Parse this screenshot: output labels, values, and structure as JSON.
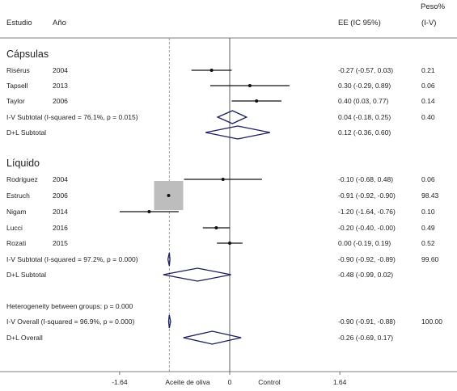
{
  "header": {
    "study": "Estudio",
    "year": "Año",
    "ee": "EE (IC 95%)",
    "weight_top": "Peso%",
    "weight_bottom": "(I-V)"
  },
  "chart_data": {
    "type": "forest",
    "xlim": [
      -3.1,
      3.1
    ],
    "null_value": 0,
    "overall_reference": -0.9,
    "ticks": [
      {
        "value": -1.64,
        "label": "-1.64"
      },
      {
        "value": 0,
        "label": "0"
      },
      {
        "value": 1.64,
        "label": "1.64"
      }
    ],
    "xlabel_left": "Aceite de oliva",
    "xlabel_right": "Control",
    "groups": [
      {
        "name": "Cápsulas",
        "studies": [
          {
            "study": "Risérus",
            "year": "2004",
            "ee": -0.27,
            "lo": -0.57,
            "hi": 0.03,
            "text": "-0.27 (-0.57, 0.03)",
            "weight": "0.21"
          },
          {
            "study": "Tapsell",
            "year": "2013",
            "ee": 0.3,
            "lo": -0.29,
            "hi": 0.89,
            "text": "0.30 (-0.29, 0.89)",
            "weight": "0.06"
          },
          {
            "study": "Taylor",
            "year": "2006",
            "ee": 0.4,
            "lo": 0.03,
            "hi": 0.77,
            "text": "0.40 (0.03, 0.77)",
            "weight": "0.14"
          }
        ],
        "subtotals": [
          {
            "label": "I-V Subtotal  (I-squared = 76.1%, p = 0.015)",
            "ee": 0.04,
            "lo": -0.18,
            "hi": 0.25,
            "text": "0.04 (-0.18, 0.25)",
            "weight": "0.40"
          },
          {
            "label": "D+L Subtotal",
            "ee": 0.12,
            "lo": -0.36,
            "hi": 0.6,
            "text": "0.12 (-0.36, 0.60)",
            "weight": ""
          }
        ]
      },
      {
        "name": "Líquido",
        "studies": [
          {
            "study": "Rodriguez",
            "year": "2004",
            "ee": -0.1,
            "lo": -0.68,
            "hi": 0.48,
            "text": "-0.10 (-0.68, 0.48)",
            "weight": "0.06"
          },
          {
            "study": "Estruch",
            "year": "2006",
            "ee": -0.91,
            "lo": -0.92,
            "hi": -0.9,
            "text": "-0.91 (-0.92, -0.90)",
            "weight": "98.43"
          },
          {
            "study": "Nigam",
            "year": "2014",
            "ee": -1.2,
            "lo": -1.64,
            "hi": -0.76,
            "text": "-1.20 (-1.64, -0.76)",
            "weight": "0.10"
          },
          {
            "study": "Lucci",
            "year": "2016",
            "ee": -0.2,
            "lo": -0.4,
            "hi": -0.0,
            "text": "-0.20 (-0.40, -0.00)",
            "weight": "0.49"
          },
          {
            "study": "Rozati",
            "year": "2015",
            "ee": 0.0,
            "lo": -0.19,
            "hi": 0.19,
            "text": "0.00 (-0.19, 0.19)",
            "weight": "0.52"
          }
        ],
        "subtotals": [
          {
            "label": "I-V Subtotal  (I-squared = 97.2%, p = 0.000)",
            "ee": -0.9,
            "lo": -0.92,
            "hi": -0.89,
            "text": "-0.90 (-0.92, -0.89)",
            "weight": "99.60"
          },
          {
            "label": "D+L Subtotal",
            "ee": -0.48,
            "lo": -0.99,
            "hi": 0.02,
            "text": "-0.48 (-0.99, 0.02)",
            "weight": ""
          }
        ]
      }
    ],
    "heterogeneity": "Heterogeneity between groups: p = 0.000",
    "overall": [
      {
        "label": "I-V Overall  (I-squared = 96.9%, p = 0.000)",
        "ee": -0.9,
        "lo": -0.91,
        "hi": -0.88,
        "text": "-0.90 (-0.91, -0.88)",
        "weight": "100.00"
      },
      {
        "label": "D+L Overall",
        "ee": -0.26,
        "lo": -0.69,
        "hi": 0.17,
        "text": "-0.26 (-0.69, 0.17)",
        "weight": ""
      }
    ]
  }
}
